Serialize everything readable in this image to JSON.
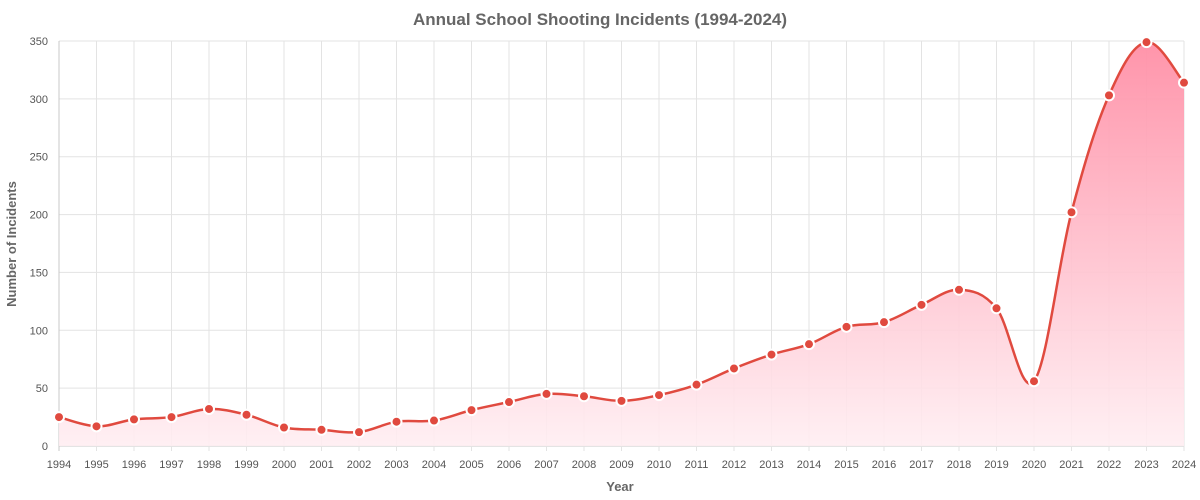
{
  "chart_data": {
    "type": "area",
    "title": "Annual School Shooting Incidents (1994-2024)",
    "xlabel": "Year",
    "ylabel": "Number of Incidents",
    "x": [
      "1994",
      "1995",
      "1996",
      "1997",
      "1998",
      "1999",
      "2000",
      "2001",
      "2002",
      "2003",
      "2004",
      "2005",
      "2006",
      "2007",
      "2008",
      "2009",
      "2010",
      "2011",
      "2012",
      "2013",
      "2014",
      "2015",
      "2016",
      "2017",
      "2018",
      "2019",
      "2020",
      "2021",
      "2022",
      "2023",
      "2024"
    ],
    "series": [
      {
        "values": [
          25,
          17,
          23,
          25,
          32,
          27,
          16,
          14,
          12,
          21,
          22,
          31,
          38,
          45,
          43,
          39,
          44,
          53,
          67,
          79,
          88,
          103,
          107,
          122,
          135,
          119,
          56,
          202,
          303,
          349,
          314
        ]
      }
    ],
    "ylim": [
      0,
      350
    ],
    "yticks": [
      0,
      50,
      100,
      150,
      200,
      250,
      300,
      350
    ],
    "grid": true,
    "legend": "none",
    "colors": {
      "line": "#e04a3f",
      "fill_top": "#ff8fa6",
      "fill_bottom": "#ffeef2",
      "point_fill": "#e04a3f",
      "point_stroke": "#ffffff"
    }
  }
}
